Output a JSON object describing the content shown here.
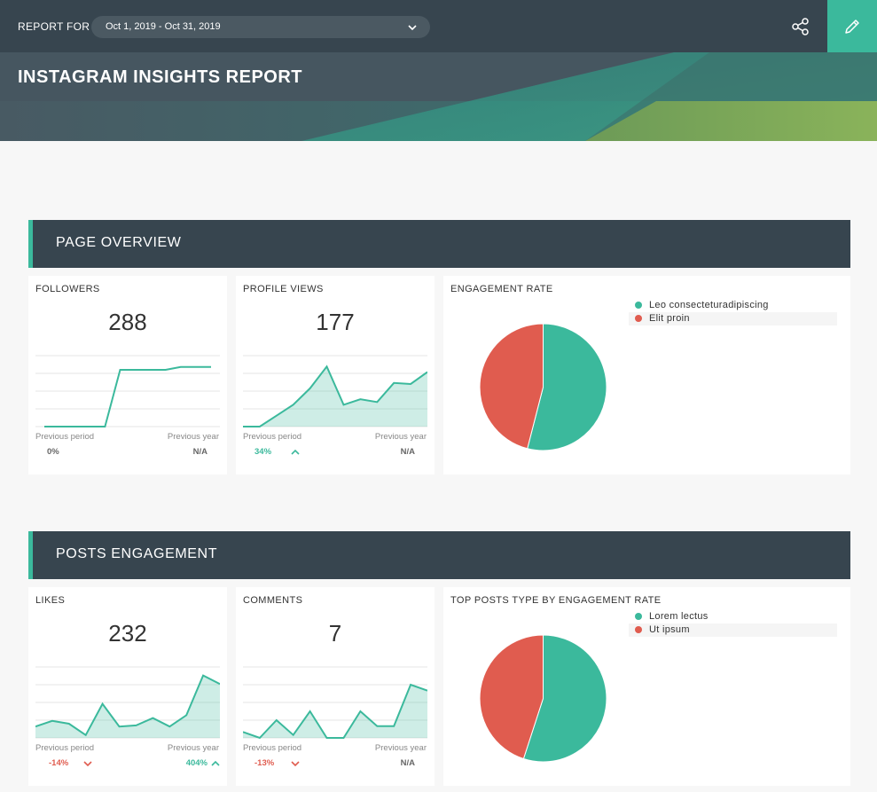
{
  "header": {
    "report_for_label": "REPORT FOR",
    "date_range": "Oct 1, 2019 - Oct 31, 2019",
    "title": "INSTAGRAM INSIGHTS REPORT",
    "share_icon": "share-icon",
    "edit_icon": "pencil-icon"
  },
  "colors": {
    "accent": "#3bb99c",
    "negative": "#e05c4f",
    "header_dark": "#37454f"
  },
  "sections": {
    "page_overview": {
      "title": "PAGE OVERVIEW",
      "followers": {
        "title": "FOLLOWERS",
        "value": "288",
        "prev_period_label": "Previous period",
        "prev_year_label": "Previous year",
        "prev_period": "0%",
        "prev_year": "N/A"
      },
      "profile_views": {
        "title": "PROFILE VIEWS",
        "value": "177",
        "prev_period_label": "Previous period",
        "prev_year_label": "Previous year",
        "prev_period": "34%",
        "prev_year": "N/A"
      },
      "engagement_rate": {
        "title": "ENGAGEMENT RATE",
        "legend": [
          "Leo consecteturadipiscing",
          "Elit proin"
        ]
      }
    },
    "posts_engagement": {
      "title": "POSTS ENGAGEMENT",
      "likes": {
        "title": "LIKES",
        "value": "232",
        "prev_period_label": "Previous period",
        "prev_year_label": "Previous year",
        "prev_period": "-14%",
        "prev_year": "404%"
      },
      "comments": {
        "title": "COMMENTS",
        "value": "7",
        "prev_period_label": "Previous period",
        "prev_year_label": "Previous year",
        "prev_period": "-13%",
        "prev_year": "N/A"
      },
      "top_posts": {
        "title": "TOP POSTS TYPE BY ENGAGEMENT RATE",
        "legend": [
          "Lorem lectus",
          "Ut ipsum"
        ]
      }
    }
  },
  "chart_data": [
    {
      "type": "line",
      "name": "followers-sparkline",
      "values": [
        0,
        0,
        0,
        0,
        0,
        4,
        4,
        4,
        4,
        4.2,
        4.2,
        4.2
      ],
      "ylim": [
        0,
        5
      ]
    },
    {
      "type": "area",
      "name": "profile-views-sparkline",
      "values": [
        0,
        0,
        2,
        4,
        7,
        11,
        4,
        5,
        4.5,
        8,
        7.8,
        10
      ],
      "ylim": [
        0,
        13
      ]
    },
    {
      "type": "pie",
      "name": "engagement-rate-pie",
      "categories": [
        "Leo consecteturadipiscing",
        "Elit proin"
      ],
      "values": [
        54,
        46
      ],
      "colors": [
        "#3bb99c",
        "#e05c4f"
      ]
    },
    {
      "type": "area",
      "name": "likes-sparkline",
      "values": [
        2,
        3,
        2.5,
        0.5,
        6,
        2,
        2.2,
        3.5,
        2,
        4,
        11,
        9.5
      ],
      "ylim": [
        0,
        12.5
      ]
    },
    {
      "type": "area",
      "name": "comments-sparkline",
      "values": [
        1,
        0,
        3,
        0.5,
        4.5,
        0,
        0,
        4.5,
        2,
        2,
        9,
        8
      ],
      "ylim": [
        0,
        12
      ]
    },
    {
      "type": "pie",
      "name": "top-posts-type-pie",
      "categories": [
        "Lorem lectus",
        "Ut ipsum"
      ],
      "values": [
        55,
        45
      ],
      "colors": [
        "#3bb99c",
        "#e05c4f"
      ]
    }
  ]
}
